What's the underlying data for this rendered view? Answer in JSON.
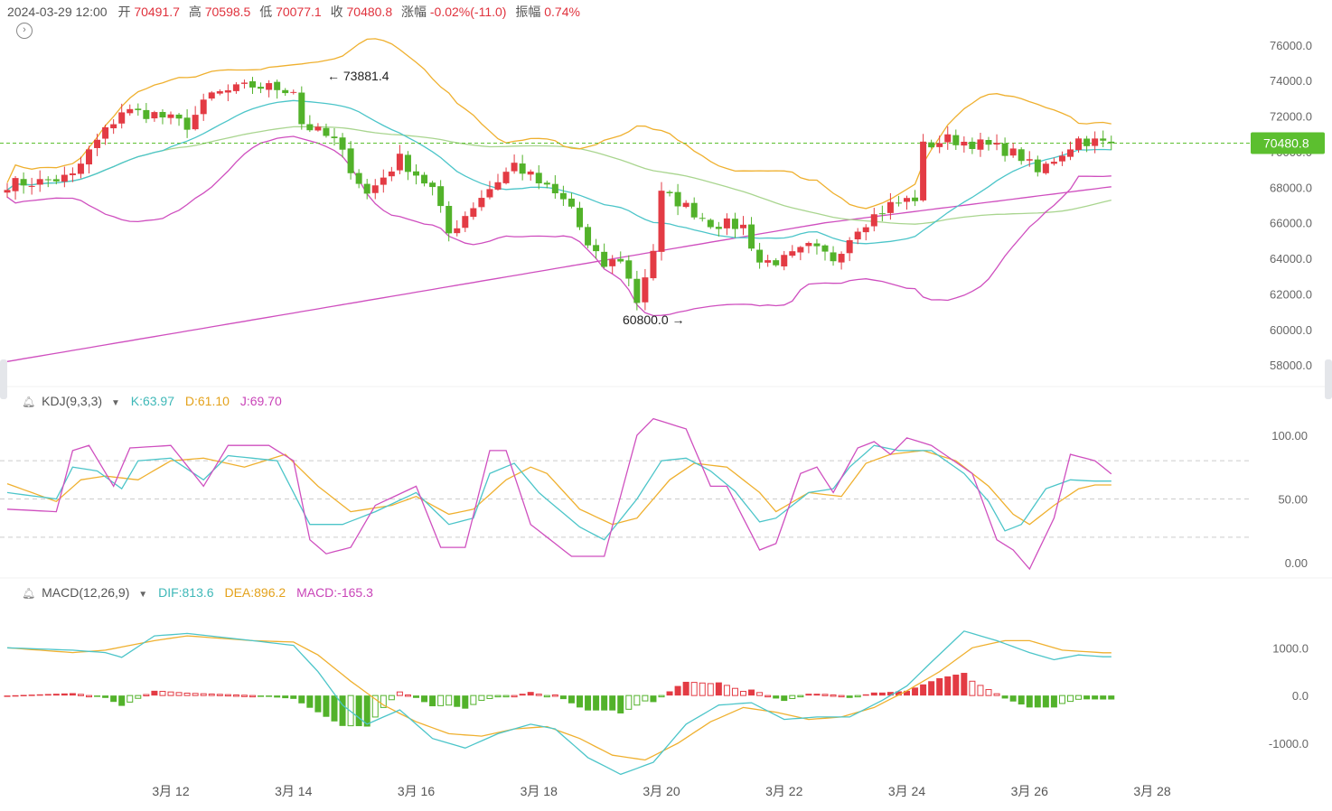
{
  "header": {
    "datetime": "2024-03-29 12:00",
    "open_label": "开",
    "open": "70491.7",
    "high_label": "高",
    "high": "70598.5",
    "low_label": "低",
    "low": "70077.1",
    "close_label": "收",
    "close": "70480.8",
    "change_label": "涨幅",
    "change": "-0.02%(-11.0)",
    "amplitude_label": "振幅",
    "amplitude": "0.74%"
  },
  "kdj": {
    "title": "KDJ(9,3,3)",
    "k": "K:63.97",
    "d": "D:61.10",
    "j": "J:69.70"
  },
  "macd": {
    "title": "MACD(12,26,9)",
    "dif": "DIF:813.6",
    "dea": "DEA:896.2",
    "macd": "MACD:-165.3"
  },
  "colors": {
    "up": "#e33b44",
    "down": "#52b22a",
    "cyan": "#4cc5c9",
    "orange": "#efb02f",
    "magenta": "#cf4fbf",
    "lightgreen": "#a9d58f",
    "last_price_bg": "#5cbf2f"
  },
  "chart_data": {
    "type": "candlestick",
    "x_ticks": [
      "3月 12",
      "3月 14",
      "3月 16",
      "3月 18",
      "3月 20",
      "3月 22",
      "3月 24",
      "3月 26",
      "3月 28"
    ],
    "price_axis": [
      "76000.0",
      "74000.0",
      "72000.0",
      "70000.0",
      "68000.0",
      "66000.0",
      "64000.0",
      "62000.0",
      "60000.0",
      "58000.0"
    ],
    "price_range": [
      57200,
      76500
    ],
    "last_price": "70480.8",
    "high_annotation": "73881.4",
    "low_annotation": "60800.0",
    "kdj_axis": [
      "100.00",
      "50.00",
      "0.00"
    ],
    "kdj_range": [
      -12,
      112
    ],
    "macd_axis": [
      "1000.0",
      "0.0",
      "-1000.0"
    ],
    "macd_range": [
      -1700,
      1800
    ],
    "ohlc_anchors": [
      [
        0,
        68200
      ],
      [
        4,
        68300
      ],
      [
        8,
        68600
      ],
      [
        10,
        70000
      ],
      [
        14,
        72300
      ],
      [
        18,
        72100
      ],
      [
        22,
        71500
      ],
      [
        25,
        73200
      ],
      [
        30,
        73700
      ],
      [
        35,
        73500
      ],
      [
        36,
        71600
      ],
      [
        40,
        70600
      ],
      [
        44,
        67600
      ],
      [
        48,
        69600
      ],
      [
        52,
        67900
      ],
      [
        54,
        65400
      ],
      [
        58,
        67500
      ],
      [
        62,
        69300
      ],
      [
        66,
        67900
      ],
      [
        69,
        66900
      ],
      [
        71,
        64600
      ],
      [
        73,
        63600
      ],
      [
        75,
        64000
      ],
      [
        77,
        61600
      ],
      [
        79,
        64500
      ],
      [
        80,
        67600
      ],
      [
        82,
        67200
      ],
      [
        86,
        66000
      ],
      [
        90,
        65800
      ],
      [
        92,
        63800
      ],
      [
        95,
        63900
      ],
      [
        98,
        64600
      ],
      [
        101,
        64000
      ],
      [
        104,
        65800
      ],
      [
        108,
        67000
      ],
      [
        111,
        67400
      ],
      [
        112,
        70300
      ],
      [
        115,
        70700
      ],
      [
        118,
        70500
      ],
      [
        122,
        70100
      ],
      [
        124,
        69700
      ],
      [
        126,
        68800
      ],
      [
        128,
        69600
      ],
      [
        131,
        70700
      ],
      [
        134,
        70480
      ]
    ],
    "kdj_k_anchors": [
      [
        0,
        55
      ],
      [
        6,
        50
      ],
      [
        8,
        75
      ],
      [
        11,
        72
      ],
      [
        14,
        58
      ],
      [
        16,
        80
      ],
      [
        20,
        82
      ],
      [
        24,
        65
      ],
      [
        27,
        84
      ],
      [
        33,
        80
      ],
      [
        37,
        30
      ],
      [
        41,
        30
      ],
      [
        45,
        40
      ],
      [
        50,
        55
      ],
      [
        54,
        30
      ],
      [
        57,
        35
      ],
      [
        59,
        70
      ],
      [
        62,
        78
      ],
      [
        65,
        55
      ],
      [
        70,
        28
      ],
      [
        73,
        18
      ],
      [
        77,
        50
      ],
      [
        80,
        80
      ],
      [
        83,
        82
      ],
      [
        86,
        72
      ],
      [
        89,
        56
      ],
      [
        92,
        32
      ],
      [
        94,
        35
      ],
      [
        98,
        55
      ],
      [
        101,
        58
      ],
      [
        103,
        75
      ],
      [
        106,
        92
      ],
      [
        109,
        88
      ],
      [
        113,
        88
      ],
      [
        117,
        70
      ],
      [
        120,
        48
      ],
      [
        122,
        25
      ],
      [
        124,
        30
      ],
      [
        127,
        58
      ],
      [
        130,
        65
      ],
      [
        133,
        64
      ]
    ],
    "kdj_d_anchors": [
      [
        0,
        62
      ],
      [
        6,
        48
      ],
      [
        9,
        65
      ],
      [
        12,
        68
      ],
      [
        16,
        65
      ],
      [
        20,
        80
      ],
      [
        24,
        82
      ],
      [
        29,
        75
      ],
      [
        34,
        85
      ],
      [
        38,
        60
      ],
      [
        42,
        40
      ],
      [
        47,
        45
      ],
      [
        50,
        52
      ],
      [
        54,
        38
      ],
      [
        57,
        42
      ],
      [
        61,
        65
      ],
      [
        64,
        75
      ],
      [
        66,
        70
      ],
      [
        70,
        42
      ],
      [
        74,
        30
      ],
      [
        77,
        35
      ],
      [
        81,
        65
      ],
      [
        84,
        78
      ],
      [
        88,
        75
      ],
      [
        92,
        55
      ],
      [
        94,
        40
      ],
      [
        98,
        55
      ],
      [
        102,
        52
      ],
      [
        105,
        78
      ],
      [
        108,
        85
      ],
      [
        112,
        88
      ],
      [
        116,
        80
      ],
      [
        120,
        60
      ],
      [
        123,
        38
      ],
      [
        125,
        30
      ],
      [
        128,
        45
      ],
      [
        131,
        58
      ],
      [
        133,
        61
      ]
    ],
    "kdj_j_anchors": [
      [
        0,
        42
      ],
      [
        6,
        40
      ],
      [
        8,
        88
      ],
      [
        10,
        92
      ],
      [
        13,
        60
      ],
      [
        15,
        90
      ],
      [
        20,
        92
      ],
      [
        24,
        60
      ],
      [
        27,
        92
      ],
      [
        32,
        92
      ],
      [
        35,
        80
      ],
      [
        37,
        18
      ],
      [
        39,
        7
      ],
      [
        42,
        12
      ],
      [
        45,
        45
      ],
      [
        50,
        60
      ],
      [
        53,
        12
      ],
      [
        56,
        12
      ],
      [
        59,
        88
      ],
      [
        61,
        88
      ],
      [
        64,
        30
      ],
      [
        69,
        5
      ],
      [
        73,
        5
      ],
      [
        77,
        100
      ],
      [
        79,
        113
      ],
      [
        83,
        105
      ],
      [
        86,
        60
      ],
      [
        88,
        60
      ],
      [
        90,
        35
      ],
      [
        92,
        10
      ],
      [
        94,
        15
      ],
      [
        97,
        70
      ],
      [
        99,
        75
      ],
      [
        101,
        55
      ],
      [
        104,
        90
      ],
      [
        106,
        95
      ],
      [
        108,
        85
      ],
      [
        110,
        98
      ],
      [
        113,
        92
      ],
      [
        118,
        70
      ],
      [
        121,
        18
      ],
      [
        123,
        10
      ],
      [
        125,
        -5
      ],
      [
        128,
        35
      ],
      [
        130,
        85
      ],
      [
        133,
        80
      ],
      [
        135,
        69.7
      ]
    ],
    "macd_dif_anchors": [
      [
        0,
        1000
      ],
      [
        8,
        950
      ],
      [
        12,
        900
      ],
      [
        14,
        800
      ],
      [
        18,
        1250
      ],
      [
        22,
        1300
      ],
      [
        30,
        1150
      ],
      [
        35,
        1050
      ],
      [
        38,
        500
      ],
      [
        41,
        -200
      ],
      [
        44,
        -600
      ],
      [
        48,
        -300
      ],
      [
        52,
        -900
      ],
      [
        56,
        -1100
      ],
      [
        60,
        -800
      ],
      [
        64,
        -600
      ],
      [
        67,
        -700
      ],
      [
        71,
        -1300
      ],
      [
        75,
        -1650
      ],
      [
        79,
        -1400
      ],
      [
        83,
        -600
      ],
      [
        87,
        -200
      ],
      [
        91,
        -150
      ],
      [
        95,
        -500
      ],
      [
        99,
        -450
      ],
      [
        103,
        -450
      ],
      [
        107,
        -100
      ],
      [
        110,
        200
      ],
      [
        113,
        700
      ],
      [
        117,
        1350
      ],
      [
        121,
        1150
      ],
      [
        125,
        900
      ],
      [
        128,
        750
      ],
      [
        131,
        850
      ],
      [
        134,
        813
      ]
    ],
    "macd_dea_anchors": [
      [
        0,
        1000
      ],
      [
        8,
        900
      ],
      [
        12,
        950
      ],
      [
        18,
        1150
      ],
      [
        22,
        1250
      ],
      [
        30,
        1150
      ],
      [
        35,
        1120
      ],
      [
        38,
        850
      ],
      [
        42,
        300
      ],
      [
        46,
        -200
      ],
      [
        50,
        -550
      ],
      [
        54,
        -800
      ],
      [
        58,
        -850
      ],
      [
        62,
        -700
      ],
      [
        66,
        -650
      ],
      [
        70,
        -900
      ],
      [
        74,
        -1250
      ],
      [
        78,
        -1350
      ],
      [
        82,
        -1000
      ],
      [
        86,
        -550
      ],
      [
        90,
        -250
      ],
      [
        94,
        -350
      ],
      [
        98,
        -500
      ],
      [
        102,
        -450
      ],
      [
        106,
        -250
      ],
      [
        110,
        100
      ],
      [
        114,
        500
      ],
      [
        118,
        1000
      ],
      [
        122,
        1150
      ],
      [
        125,
        1150
      ],
      [
        129,
        950
      ],
      [
        134,
        896
      ]
    ]
  }
}
